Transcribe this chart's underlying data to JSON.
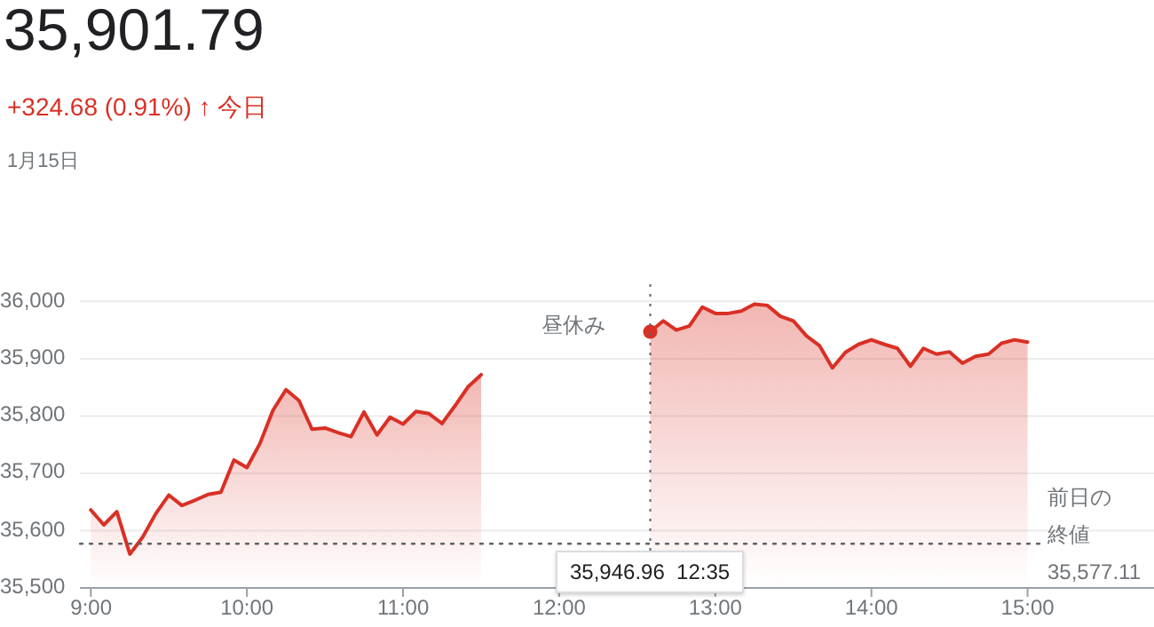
{
  "chart_data": {
    "type": "area",
    "title": "35,901.79",
    "subtitle": "+324.68 (0.91%) ↑ 今日",
    "annotations": [
      "1月15日",
      "昼休み",
      "35,946.96  12:35"
    ],
    "xlim": [
      8.93,
      15.81
    ],
    "ylim": [
      35500,
      36030
    ],
    "xticks": [
      {
        "value": 9,
        "label": "9:00"
      },
      {
        "value": 10,
        "label": "10:00"
      },
      {
        "value": 11,
        "label": "11:00"
      },
      {
        "value": 12,
        "label": "12:00"
      },
      {
        "value": 13,
        "label": "13:00"
      },
      {
        "value": 14,
        "label": "14:00"
      },
      {
        "value": 15,
        "label": "15:00"
      }
    ],
    "yticks": [
      {
        "value": 35500,
        "label": "35,500"
      },
      {
        "value": 35600,
        "label": "35,600"
      },
      {
        "value": 35700,
        "label": "35,700"
      },
      {
        "value": 35800,
        "label": "35,800"
      },
      {
        "value": 35900,
        "label": "35,900"
      },
      {
        "value": 36000,
        "label": "36,000"
      }
    ],
    "grid": "y",
    "ref_lines": [
      {
        "axis": "y",
        "value": 35577.11,
        "label": "前日の終値 35,577.11",
        "line_style": "dotted"
      },
      {
        "axis": "x",
        "value": 12.5833,
        "line_style": "dotted"
      }
    ],
    "series": [
      {
        "type": "scatter",
        "color": "#d93025",
        "x": [
          12.5833
        ],
        "values": [
          35946.96
        ]
      },
      {
        "color": "#d93025",
        "x": [
          9,
          9.0833,
          9.1667,
          9.25,
          9.3333,
          9.4167,
          9.5,
          9.5833,
          9.6667,
          9.75,
          9.8333,
          9.9167,
          10,
          10.0833,
          10.1667,
          10.25,
          10.3333,
          10.4167,
          10.5,
          10.5833,
          10.6667,
          10.75,
          10.8333,
          10.9167,
          11,
          11.0833,
          11.1667,
          11.25,
          11.3333,
          11.4167,
          11.5
        ],
        "values": [
          35636,
          35610,
          35633,
          35559,
          35589,
          35630,
          35662,
          35644,
          35653,
          35663,
          35667,
          35723,
          35710,
          35752,
          35810,
          35846,
          35827,
          35777,
          35779,
          35771,
          35764,
          35807,
          35767,
          35798,
          35786,
          35808,
          35804,
          35787,
          35818,
          35851,
          35872
        ]
      },
      {
        "color": "#d93025",
        "x": [
          12.5833,
          12.6667,
          12.75,
          12.8333,
          12.9167,
          13,
          13.0833,
          13.1667,
          13.25,
          13.3333,
          13.4167,
          13.5,
          13.5833,
          13.6667,
          13.75,
          13.8333,
          13.9167,
          14,
          14.0833,
          14.1667,
          14.25,
          14.3333,
          14.4167,
          14.5,
          14.5833,
          14.6667,
          14.75,
          14.8333,
          14.9167,
          15
        ],
        "values": [
          35946.96,
          35966,
          35950,
          35957,
          35990,
          35979,
          35979,
          35983,
          35995,
          35993,
          35974,
          35966,
          35940,
          35923,
          35884,
          35911,
          35925,
          35933,
          35925,
          35918,
          35887,
          35918,
          35908,
          35912,
          35892,
          35904,
          35908,
          35927,
          35933,
          35929
        ]
      }
    ]
  }
}
